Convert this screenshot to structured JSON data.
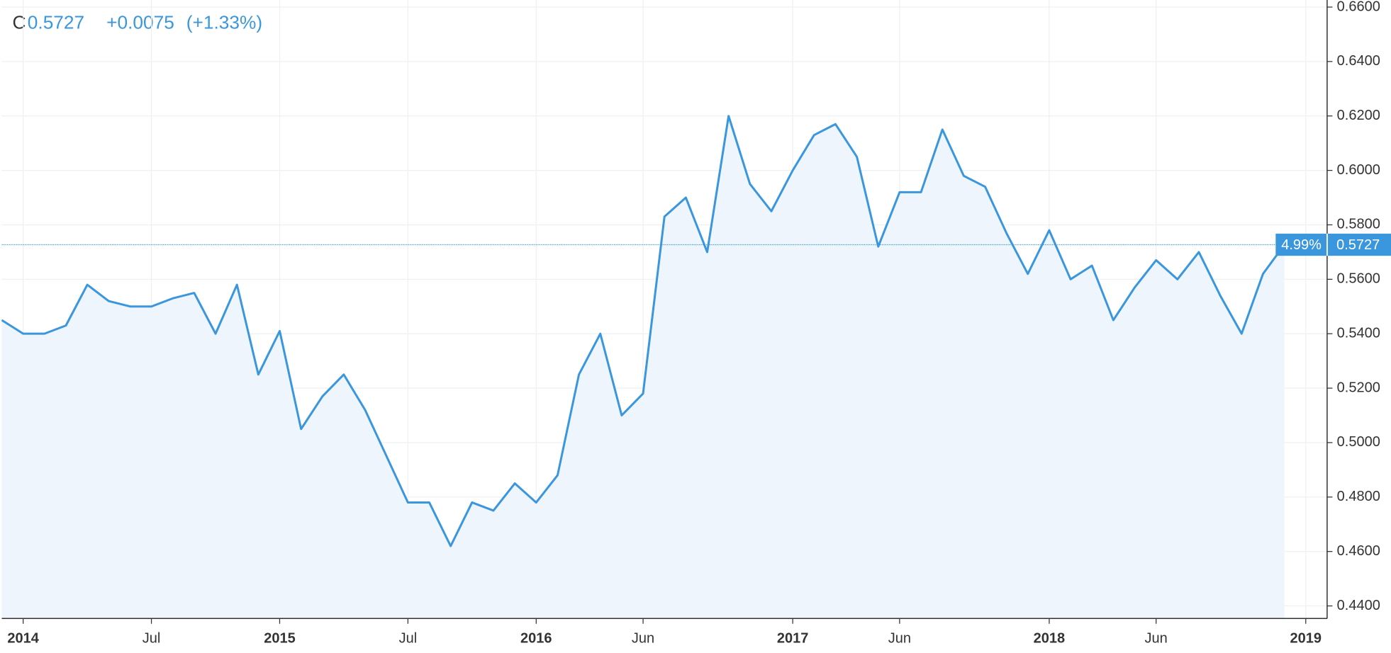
{
  "chart_data": {
    "type": "line",
    "symbol": "C",
    "last_price": "0.5727",
    "change": "+0.0075",
    "change_percent": "(+1.33%)",
    "price_tag_percent": "4.99%",
    "price_tag_value": 0.5727,
    "x": [
      "2013-12",
      "2014-01",
      "2014-02",
      "2014-03",
      "2014-04",
      "2014-05",
      "2014-06",
      "2014-07",
      "2014-08",
      "2014-09",
      "2014-10",
      "2014-11",
      "2014-12",
      "2015-01",
      "2015-02",
      "2015-03",
      "2015-04",
      "2015-05",
      "2015-06",
      "2015-07",
      "2015-08",
      "2015-09",
      "2015-10",
      "2015-11",
      "2015-12",
      "2016-01",
      "2016-02",
      "2016-03",
      "2016-04",
      "2016-05",
      "2016-06",
      "2016-07",
      "2016-08",
      "2016-09",
      "2016-10",
      "2016-11",
      "2016-12",
      "2017-01",
      "2017-02",
      "2017-03",
      "2017-04",
      "2017-05",
      "2017-06",
      "2017-07",
      "2017-08",
      "2017-09",
      "2017-10",
      "2017-11",
      "2017-12",
      "2018-01",
      "2018-02",
      "2018-03",
      "2018-04",
      "2018-05",
      "2018-06",
      "2018-07",
      "2018-08",
      "2018-09",
      "2018-10",
      "2018-11",
      "2018-12"
    ],
    "series": [
      {
        "name": "C",
        "color": "#3a96dd",
        "fill": "#eef5fc",
        "values": [
          0.545,
          0.54,
          0.54,
          0.543,
          0.558,
          0.552,
          0.55,
          0.55,
          0.553,
          0.555,
          0.54,
          0.558,
          0.525,
          0.541,
          0.505,
          0.517,
          0.525,
          0.512,
          0.495,
          0.478,
          0.478,
          0.462,
          0.478,
          0.475,
          0.485,
          0.478,
          0.488,
          0.525,
          0.54,
          0.51,
          0.518,
          0.583,
          0.59,
          0.57,
          0.62,
          0.595,
          0.585,
          0.6,
          0.613,
          0.617,
          0.605,
          0.572,
          0.592,
          0.592,
          0.615,
          0.598,
          0.594,
          0.577,
          0.562,
          0.578,
          0.56,
          0.565,
          0.545,
          0.557,
          0.567,
          0.56,
          0.57,
          0.554,
          0.54,
          0.562,
          0.5727
        ]
      }
    ],
    "xlim": [
      "2013-12",
      "2019-02"
    ],
    "xticks": [
      {
        "value": "2014-01",
        "label": "2014"
      },
      {
        "value": "2014-07",
        "label": "Jul"
      },
      {
        "value": "2015-01",
        "label": "2015"
      },
      {
        "value": "2015-07",
        "label": "Jul"
      },
      {
        "value": "2016-01",
        "label": "2016"
      },
      {
        "value": "2016-06",
        "label": "Jun"
      },
      {
        "value": "2017-01",
        "label": "2017"
      },
      {
        "value": "2017-06",
        "label": "Jun"
      },
      {
        "value": "2018-01",
        "label": "2018"
      },
      {
        "value": "2018-06",
        "label": "Jun"
      },
      {
        "value": "2019-01",
        "label": "2019"
      }
    ],
    "ylim": [
      0.4354,
      0.6626
    ],
    "yticks": [
      {
        "value": 0.44,
        "label": "0.4400"
      },
      {
        "value": 0.46,
        "label": "0.4600"
      },
      {
        "value": 0.48,
        "label": "0.4800"
      },
      {
        "value": 0.5,
        "label": "0.5000"
      },
      {
        "value": 0.52,
        "label": "0.5200"
      },
      {
        "value": 0.54,
        "label": "0.5400"
      },
      {
        "value": 0.56,
        "label": "0.5600"
      },
      {
        "value": 0.58,
        "label": "0.5800"
      },
      {
        "value": 0.6,
        "label": "0.6000"
      },
      {
        "value": 0.62,
        "label": "0.6200"
      },
      {
        "value": 0.64,
        "label": "0.6400"
      },
      {
        "value": 0.66,
        "label": "0.6600"
      }
    ],
    "grid": true
  }
}
